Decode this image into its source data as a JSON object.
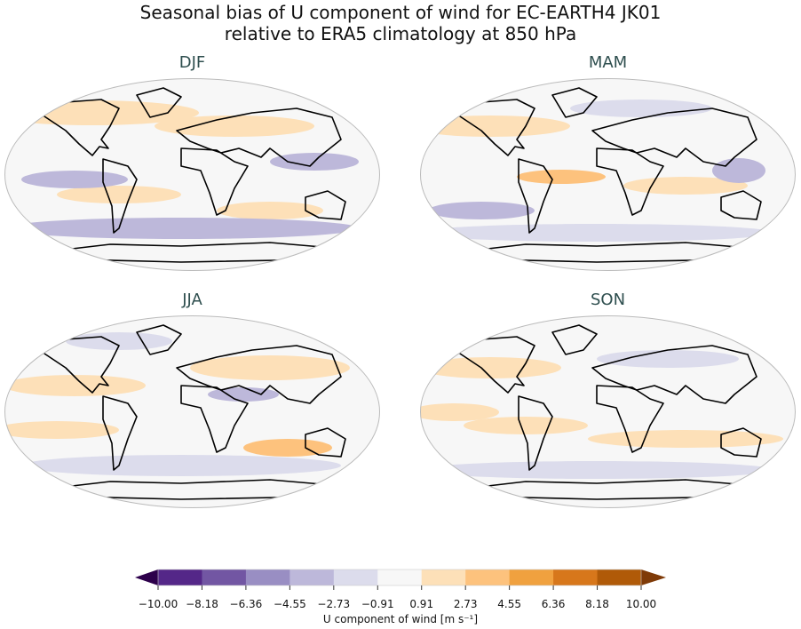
{
  "title_line1": "Seasonal bias of U component of wind for EC-EARTH4 JK01",
  "title_line2": "relative to ERA5 climatology at 850 hPa",
  "panels": [
    {
      "label": "DJF"
    },
    {
      "label": "MAM"
    },
    {
      "label": "JJA"
    },
    {
      "label": "SON"
    }
  ],
  "colorbar": {
    "label": "U component of wind [m s⁻¹]",
    "ticks": [
      "−10.00",
      "−8.18",
      "−6.36",
      "−4.55",
      "−2.73",
      "−0.91",
      "0.91",
      "2.73",
      "4.55",
      "6.36",
      "8.18",
      "10.00"
    ],
    "colors": [
      "#542788",
      "#7256a3",
      "#998ec3",
      "#bdb8da",
      "#dcdcec",
      "#f7f7f7",
      "#fde0b8",
      "#fdc27d",
      "#f0a13f",
      "#d7771b",
      "#b05a08"
    ],
    "under_color": "#2d004b",
    "over_color": "#7f3b08",
    "extend": "both"
  }
}
